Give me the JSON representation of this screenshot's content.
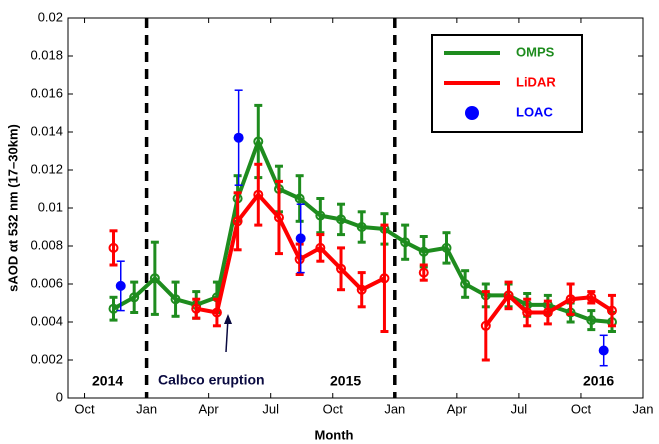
{
  "chart_data": {
    "type": "line",
    "xlabel": "Month",
    "ylabel": "sAOD  αt  532 nm (17–30km)",
    "xlim": [
      -0.8,
      27
    ],
    "xticks": [
      {
        "value": 0,
        "label": "Oct"
      },
      {
        "value": 3,
        "label": "Jan"
      },
      {
        "value": 6,
        "label": "Apr"
      },
      {
        "value": 9,
        "label": "Jul"
      },
      {
        "value": 12,
        "label": "Oct"
      },
      {
        "value": 15,
        "label": "Jan"
      },
      {
        "value": 18,
        "label": "Apr"
      },
      {
        "value": 21,
        "label": "Jul"
      },
      {
        "value": 24,
        "label": "Oct"
      },
      {
        "value": 27,
        "label": "Jan"
      }
    ],
    "ylim": [
      0,
      0.02
    ],
    "yticks": [
      0,
      0.002,
      0.004,
      0.006,
      0.008,
      0.01,
      0.012,
      0.014,
      0.016,
      0.018,
      0.02
    ],
    "dashed_lines": [
      3,
      15
    ],
    "annotations": [
      "2014",
      "Calbco eruption",
      "2015",
      "2016"
    ],
    "legend_position": "upper right",
    "series": [
      {
        "name": "OMPS",
        "color": "#1e8c1e",
        "x": [
          1.4,
          2.4,
          3.4,
          4.4,
          5.4,
          6.4,
          7.4,
          8.4,
          9.4,
          10.4,
          11.4,
          12.4,
          13.4,
          14.5,
          15.5,
          16.4,
          17.5,
          18.4,
          19.4,
          20.5,
          21.4,
          22.4,
          23.5,
          24.5,
          25.5
        ],
        "values": [
          0.0047,
          0.0053,
          0.0063,
          0.0052,
          0.0049,
          0.0053,
          0.0105,
          0.0135,
          0.011,
          0.0105,
          0.0096,
          0.0094,
          0.009,
          0.0089,
          0.0082,
          0.0077,
          0.0079,
          0.006,
          0.0054,
          0.0054,
          0.0049,
          0.0049,
          0.0045,
          0.0041,
          0.004
        ],
        "errors": [
          0.0006,
          0.0008,
          0.0019,
          0.0009,
          0.0007,
          0.0008,
          0.0012,
          0.0019,
          0.0012,
          0.0012,
          0.0009,
          0.0008,
          0.0008,
          0.0008,
          0.0009,
          0.0008,
          0.0008,
          0.0007,
          0.0006,
          0.0006,
          0.0006,
          0.0005,
          0.0005,
          0.0005,
          0.0005
        ]
      },
      {
        "name": "LiDAR",
        "color": "#ff0000",
        "x": [
          1.4,
          2.4,
          3.4,
          4.4,
          5.4,
          6.4,
          7.4,
          8.4,
          9.4,
          10.4,
          11.4,
          12.4,
          13.4,
          14.5,
          15.5,
          16.4,
          17.5,
          18.4,
          19.4,
          20.5,
          21.4,
          22.4,
          23.5,
          24.5,
          25.5
        ],
        "values": [
          0.0079,
          null,
          null,
          null,
          0.0047,
          0.0045,
          0.0093,
          0.0107,
          0.0095,
          0.0073,
          0.0079,
          0.0068,
          0.0057,
          0.0063,
          null,
          0.0066,
          null,
          null,
          0.0038,
          0.0054,
          0.0045,
          0.0045,
          0.0052,
          0.0053,
          0.0046
        ],
        "errors": [
          0.0009,
          null,
          null,
          null,
          0.0005,
          0.0007,
          0.0015,
          0.0016,
          0.0019,
          0.0008,
          0.0007,
          0.0011,
          0.0009,
          0.0028,
          null,
          0.0004,
          null,
          null,
          0.0018,
          0.0007,
          0.0007,
          0.0006,
          0.0008,
          0.0003,
          0.0008
        ]
      },
      {
        "name": "LOAC",
        "color": "#0000ff",
        "x": [
          1.75,
          7.45,
          10.45,
          25.1
        ],
        "values": [
          0.0059,
          0.0137,
          0.0084,
          0.0025
        ],
        "errors": [
          0.0013,
          0.0025,
          0.0018,
          0.0008
        ]
      }
    ]
  }
}
